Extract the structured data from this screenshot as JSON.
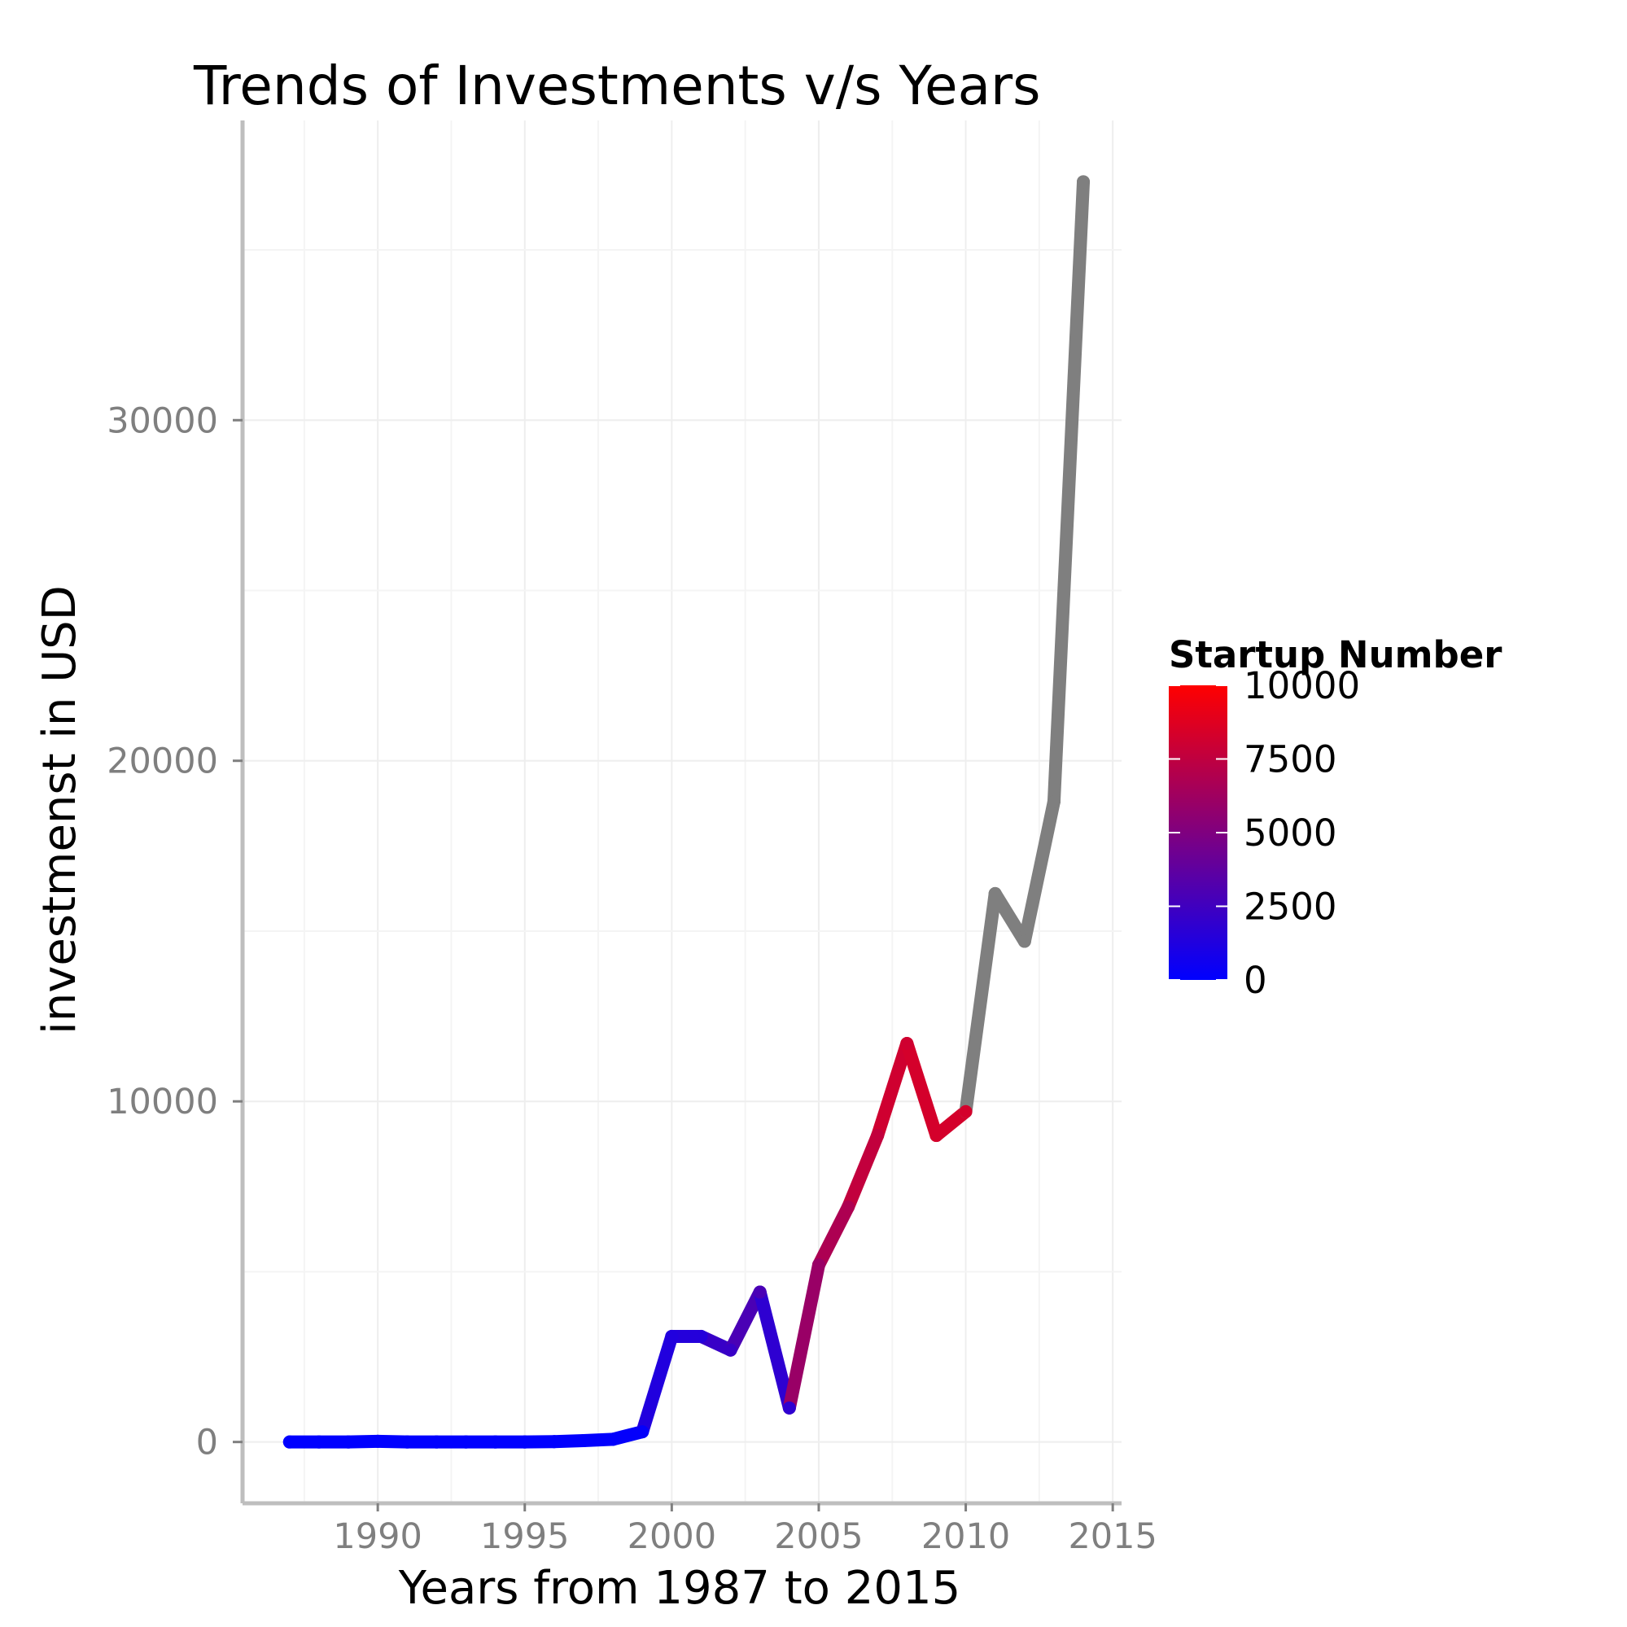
{
  "chart_data": {
    "type": "line",
    "title": "Trends of Investments v/s Years",
    "xlabel": "Years from 1987 to 2015",
    "ylabel": "investmenst in USD",
    "xlim": [
      1985.4,
      2015.3
    ],
    "ylim": [
      -1800,
      38800
    ],
    "xticks": [
      1990,
      1995,
      2000,
      2005,
      2010,
      2015
    ],
    "yticks": [
      0,
      10000,
      20000,
      30000
    ],
    "grid": true,
    "legend": {
      "title": "Startup Number",
      "placement": "right",
      "range": [
        0,
        10000
      ],
      "ticks": [
        0,
        2500,
        5000,
        7500,
        10000
      ],
      "low_color": "#0000ff",
      "high_color": "#ff0000",
      "na_color": "#7f7f7f"
    },
    "series": [
      {
        "x": [
          1987,
          1988,
          1989,
          1990,
          1991,
          1992,
          1993,
          1994,
          1995,
          1996,
          1997,
          1998,
          1999,
          2000,
          2001,
          2002,
          2003,
          2004,
          2005,
          2006,
          2007,
          2008,
          2009,
          2010,
          2011,
          2012,
          2013,
          2014
        ],
        "values": [
          0,
          0,
          0,
          20,
          0,
          0,
          0,
          0,
          0,
          10,
          40,
          80,
          300,
          3100,
          3100,
          2700,
          4400,
          1000,
          5200,
          6900,
          9000,
          11700,
          9000,
          9700,
          16100,
          14700,
          18800,
          37000
        ],
        "startups": [
          5,
          5,
          5,
          5,
          5,
          5,
          5,
          8,
          10,
          15,
          30,
          60,
          150,
          1300,
          1400,
          2200,
          2900,
          1800,
          6000,
          6800,
          7600,
          8100,
          8300,
          8300,
          null,
          null,
          null,
          null
        ]
      }
    ]
  }
}
